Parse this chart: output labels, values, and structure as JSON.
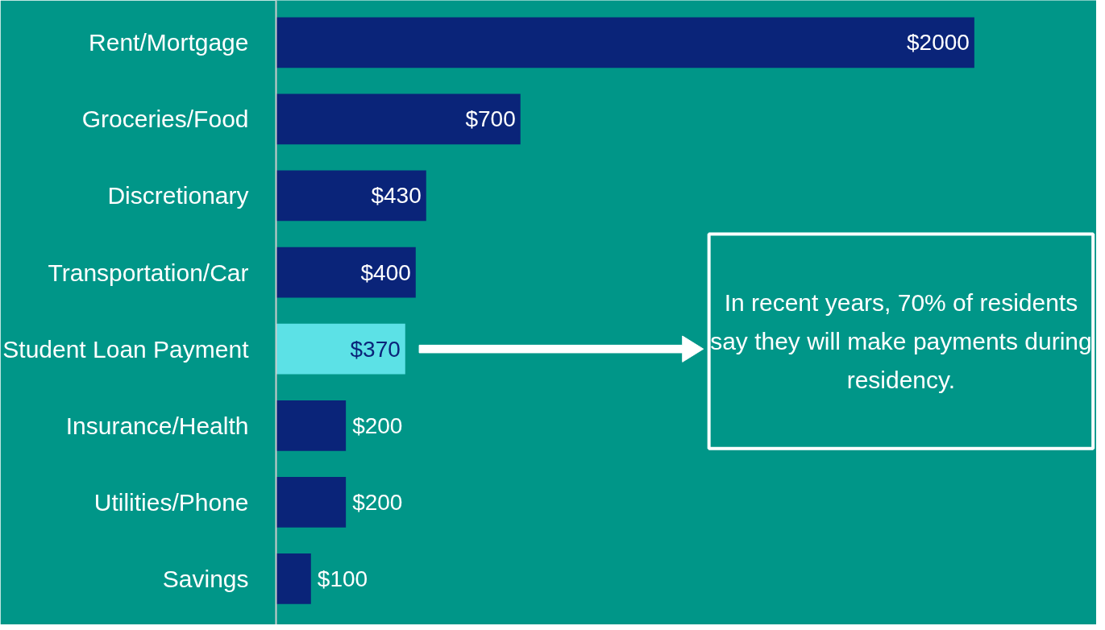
{
  "chart_data": {
    "type": "bar",
    "orientation": "horizontal",
    "categories": [
      "Rent/Mortgage",
      "Groceries/Food",
      "Discretionary",
      "Transportation/Car",
      "Student Loan Payment",
      "Insurance/Health",
      "Utilities/Phone",
      "Savings"
    ],
    "values": [
      2000,
      700,
      430,
      400,
      370,
      200,
      200,
      100
    ],
    "value_labels": [
      "$2000",
      "$700",
      "$430",
      "$400",
      "$370",
      "$200",
      "$200",
      "$100"
    ],
    "colors": [
      "#0a2479",
      "#0a2479",
      "#0a2479",
      "#0a2479",
      "#5ce1e6",
      "#0a2479",
      "#0a2479",
      "#0a2479"
    ],
    "annotations": [
      "In recent years, 70% of residents say they will make payments during residency."
    ],
    "grid": false,
    "tick_labels": "y"
  }
}
